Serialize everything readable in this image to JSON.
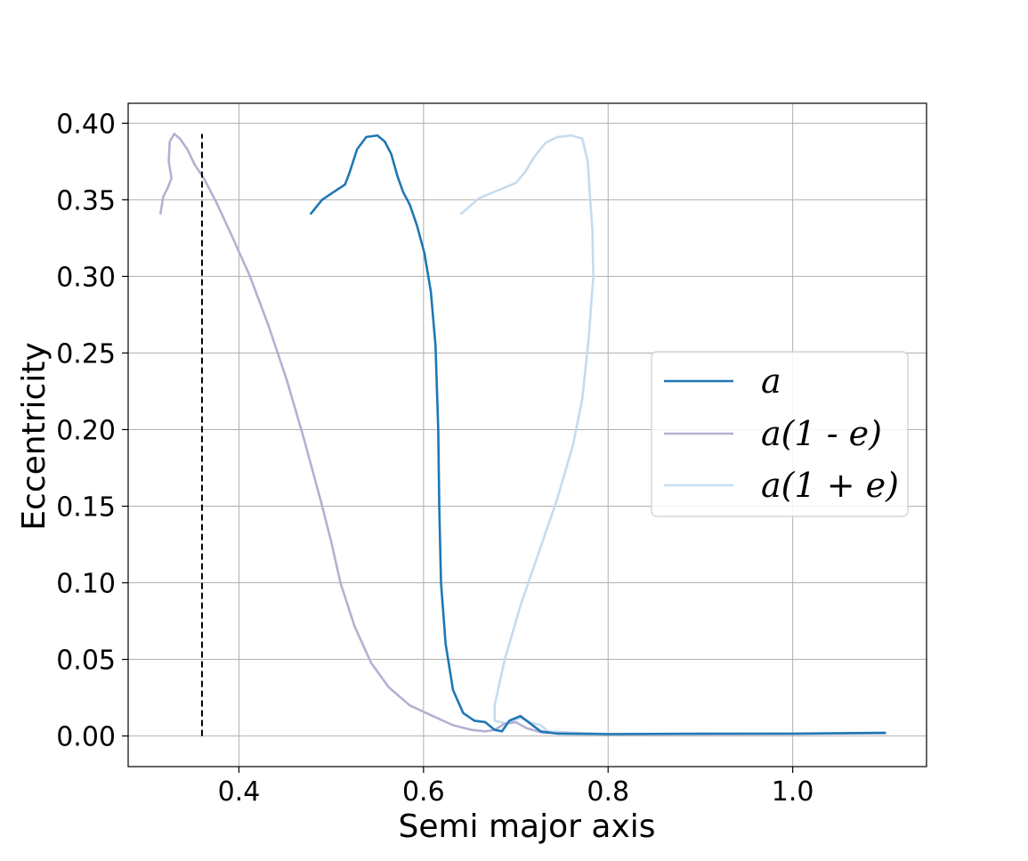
{
  "chart_data": {
    "type": "line",
    "title": "",
    "xlabel": "Semi major axis",
    "ylabel": "Eccentricity",
    "xlim": [
      0.28,
      1.145
    ],
    "ylim": [
      -0.02,
      0.413
    ],
    "xticks": [
      0.4,
      0.6,
      0.8,
      1.0
    ],
    "xtick_labels": [
      "0.4",
      "0.6",
      "0.8",
      "1.0"
    ],
    "yticks": [
      0.0,
      0.05,
      0.1,
      0.15,
      0.2,
      0.25,
      0.3,
      0.35,
      0.4
    ],
    "ytick_labels": [
      "0.00",
      "0.05",
      "0.10",
      "0.15",
      "0.20",
      "0.25",
      "0.30",
      "0.35",
      "0.40"
    ],
    "grid": true,
    "legend_position": "center-right",
    "vline": {
      "x": 0.36,
      "y_range": [
        0.0,
        0.393
      ],
      "style": "dashed",
      "color": "#000000"
    },
    "series": [
      {
        "name": "a",
        "color": "#1f77b4",
        "points": [
          [
            0.478,
            0.341
          ],
          [
            0.49,
            0.35
          ],
          [
            0.505,
            0.356
          ],
          [
            0.515,
            0.36
          ],
          [
            0.52,
            0.368
          ],
          [
            0.528,
            0.383
          ],
          [
            0.538,
            0.391
          ],
          [
            0.55,
            0.392
          ],
          [
            0.558,
            0.388
          ],
          [
            0.565,
            0.38
          ],
          [
            0.572,
            0.365
          ],
          [
            0.578,
            0.355
          ],
          [
            0.585,
            0.347
          ],
          [
            0.593,
            0.333
          ],
          [
            0.601,
            0.315
          ],
          [
            0.608,
            0.29
          ],
          [
            0.613,
            0.255
          ],
          [
            0.616,
            0.2
          ],
          [
            0.617,
            0.15
          ],
          [
            0.619,
            0.1
          ],
          [
            0.624,
            0.06
          ],
          [
            0.632,
            0.03
          ],
          [
            0.643,
            0.015
          ],
          [
            0.655,
            0.01
          ],
          [
            0.667,
            0.009
          ],
          [
            0.677,
            0.004
          ],
          [
            0.685,
            0.003
          ],
          [
            0.693,
            0.01
          ],
          [
            0.705,
            0.013
          ],
          [
            0.716,
            0.008
          ],
          [
            0.727,
            0.003
          ],
          [
            0.745,
            0.0015
          ],
          [
            0.8,
            0.0012
          ],
          [
            0.9,
            0.0015
          ],
          [
            1.0,
            0.0015
          ],
          [
            1.1,
            0.002
          ]
        ]
      },
      {
        "name": "a(1 - e)",
        "color": "#b4b0d4",
        "points": [
          [
            0.315,
            0.341
          ],
          [
            0.318,
            0.352
          ],
          [
            0.323,
            0.358
          ],
          [
            0.327,
            0.364
          ],
          [
            0.324,
            0.375
          ],
          [
            0.325,
            0.388
          ],
          [
            0.33,
            0.393
          ],
          [
            0.336,
            0.39
          ],
          [
            0.344,
            0.383
          ],
          [
            0.352,
            0.373
          ],
          [
            0.362,
            0.364
          ],
          [
            0.375,
            0.349
          ],
          [
            0.392,
            0.327
          ],
          [
            0.412,
            0.3
          ],
          [
            0.432,
            0.268
          ],
          [
            0.452,
            0.232
          ],
          [
            0.47,
            0.195
          ],
          [
            0.488,
            0.155
          ],
          [
            0.5,
            0.127
          ],
          [
            0.51,
            0.1
          ],
          [
            0.525,
            0.072
          ],
          [
            0.543,
            0.048
          ],
          [
            0.562,
            0.032
          ],
          [
            0.585,
            0.02
          ],
          [
            0.61,
            0.013
          ],
          [
            0.632,
            0.007
          ],
          [
            0.652,
            0.004
          ],
          [
            0.667,
            0.003
          ],
          [
            0.677,
            0.004
          ],
          [
            0.688,
            0.008
          ],
          [
            0.7,
            0.009
          ],
          [
            0.712,
            0.005
          ],
          [
            0.73,
            0.002
          ],
          [
            0.8,
            0.0012
          ],
          [
            0.9,
            0.0012
          ],
          [
            1.0,
            0.0014
          ],
          [
            1.1,
            0.0018
          ]
        ]
      },
      {
        "name": "a(1 + e)",
        "color": "#c6dbef",
        "points": [
          [
            0.641,
            0.341
          ],
          [
            0.66,
            0.351
          ],
          [
            0.68,
            0.356
          ],
          [
            0.7,
            0.361
          ],
          [
            0.71,
            0.368
          ],
          [
            0.72,
            0.378
          ],
          [
            0.732,
            0.387
          ],
          [
            0.745,
            0.391
          ],
          [
            0.76,
            0.392
          ],
          [
            0.772,
            0.39
          ],
          [
            0.778,
            0.375
          ],
          [
            0.78,
            0.355
          ],
          [
            0.783,
            0.33
          ],
          [
            0.784,
            0.3
          ],
          [
            0.779,
            0.26
          ],
          [
            0.772,
            0.22
          ],
          [
            0.762,
            0.19
          ],
          [
            0.745,
            0.155
          ],
          [
            0.725,
            0.12
          ],
          [
            0.705,
            0.085
          ],
          [
            0.688,
            0.05
          ],
          [
            0.677,
            0.02
          ],
          [
            0.677,
            0.01
          ],
          [
            0.69,
            0.008
          ],
          [
            0.705,
            0.012
          ],
          [
            0.715,
            0.009
          ],
          [
            0.727,
            0.007
          ],
          [
            0.735,
            0.003
          ],
          [
            0.8,
            0.0013
          ],
          [
            0.9,
            0.0015
          ],
          [
            1.0,
            0.0016
          ],
          [
            1.1,
            0.0022
          ]
        ]
      }
    ]
  }
}
